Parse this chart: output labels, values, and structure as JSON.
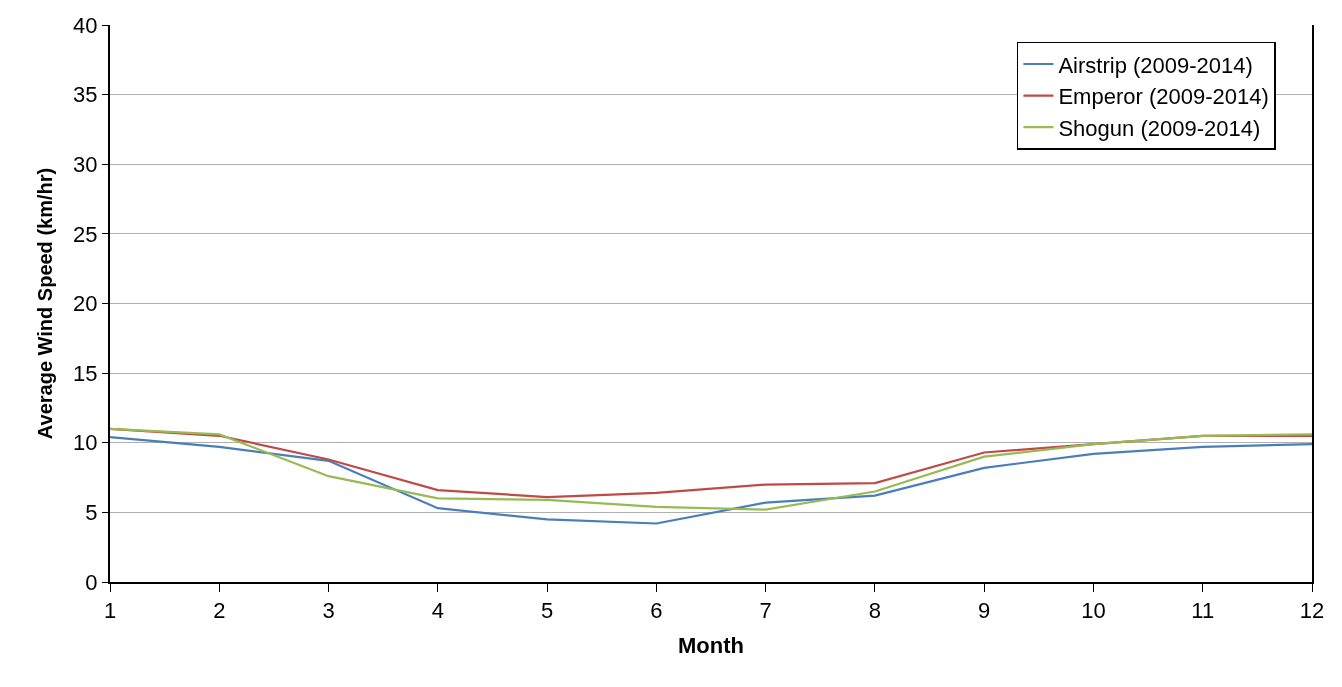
{
  "chart_data": {
    "type": "line",
    "xlabel": "Month",
    "ylabel": "Average Wind Speed (km/hr)",
    "x": [
      1,
      2,
      3,
      4,
      5,
      6,
      7,
      8,
      9,
      10,
      11,
      12
    ],
    "series": [
      {
        "name": "Airstrip (2009-2014)",
        "color": "#4a7ebb",
        "values": [
          10.4,
          9.7,
          8.7,
          5.3,
          4.5,
          4.2,
          5.7,
          6.2,
          8.2,
          9.2,
          9.7,
          9.9
        ]
      },
      {
        "name": "Emperor (2009-2014)",
        "color": "#be4b48",
        "values": [
          11.0,
          10.5,
          8.8,
          6.6,
          6.1,
          6.4,
          7.0,
          7.1,
          9.3,
          9.9,
          10.5,
          10.5
        ]
      },
      {
        "name": "Shogun (2009-2014)",
        "color": "#98b954",
        "values": [
          11.0,
          10.6,
          7.6,
          6.0,
          5.9,
          5.4,
          5.2,
          6.5,
          9.0,
          9.9,
          10.5,
          10.6
        ]
      }
    ],
    "xlim": [
      1,
      12
    ],
    "xticks": [
      1,
      2,
      3,
      4,
      5,
      6,
      7,
      8,
      9,
      10,
      11,
      12
    ],
    "ylim": [
      0,
      40
    ],
    "yticks": [
      0,
      5,
      10,
      15,
      20,
      25,
      30,
      35,
      40
    ],
    "grid": "y",
    "legend": "top right",
    "marker": "none",
    "line_style": "solid"
  }
}
